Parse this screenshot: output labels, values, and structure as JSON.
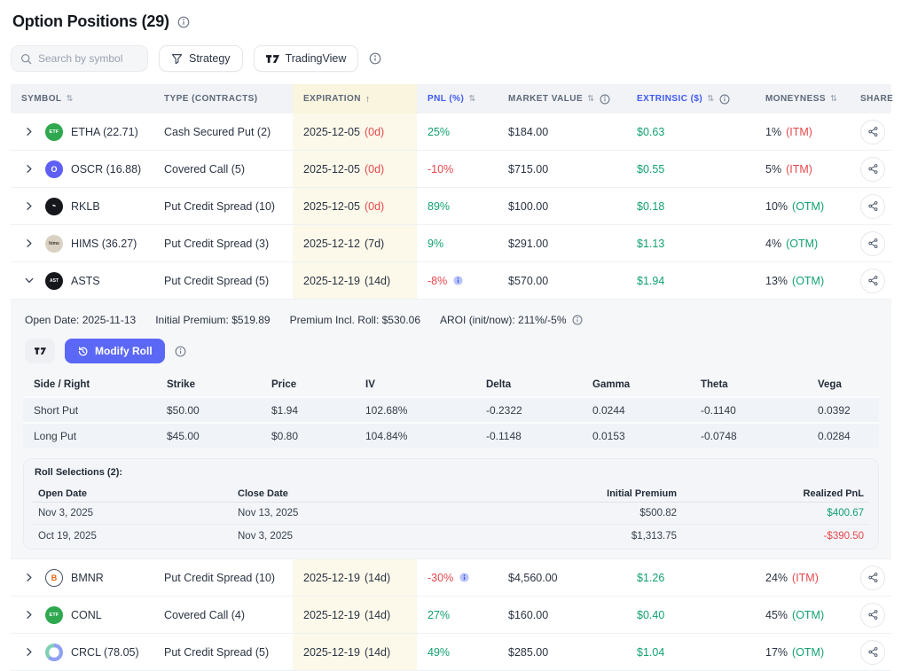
{
  "page": {
    "title": "Option Positions (29)"
  },
  "toolbar": {
    "search_placeholder": "Search by symbol",
    "strategy_label": "Strategy",
    "tradingview_label": "TradingView"
  },
  "icons": {
    "sort_glyph": "⇅",
    "sort_asc_glyph": "↑"
  },
  "colors": {
    "positive_green": "#12a171",
    "negative_red": "#e5484d",
    "accent_blue": "#3e59f3",
    "button_indigo": "#5b68f6",
    "expiration_highlight": "#fcf9ea"
  },
  "table": {
    "headers": {
      "symbol": "SYMBOL",
      "type": "TYPE (CONTRACTS)",
      "expiration": "EXPIRATION",
      "pnl": "PNL (%)",
      "market_value": "MARKET VALUE",
      "extrinsic": "EXTRINSIC ($)",
      "moneyness": "MONEYNESS",
      "share": "SHARE"
    },
    "rows": [
      {
        "ticker": "etha",
        "symbol": "ETHA (22.71)",
        "icon": {
          "kind": "etf",
          "text": "ETF",
          "bg": "#2fa84f"
        },
        "type": "Cash Secured Put (2)",
        "expiration": "2025-12-05",
        "dte": "(0d)",
        "dte_urgent": true,
        "pnl": "25%",
        "pnl_negative": false,
        "pnl_info": false,
        "market_value": "$184.00",
        "extrinsic": "$0.63",
        "moneyness_pct": "1%",
        "moneyness_tag": "(ITM)",
        "itm": true,
        "expanded": false
      },
      {
        "ticker": "oscr",
        "symbol": "OSCR (16.88)",
        "icon": {
          "kind": "letter",
          "text": "O",
          "bg": "#5f5ff5",
          "fg": "#ffffff",
          "fs": 9
        },
        "type": "Covered Call (5)",
        "expiration": "2025-12-05",
        "dte": "(0d)",
        "dte_urgent": true,
        "pnl": "-10%",
        "pnl_negative": true,
        "pnl_info": false,
        "market_value": "$715.00",
        "extrinsic": "$0.55",
        "moneyness_pct": "5%",
        "moneyness_tag": "(ITM)",
        "itm": true,
        "expanded": false
      },
      {
        "ticker": "rklb",
        "symbol": "RKLB",
        "icon": {
          "kind": "letter",
          "text": "⌁",
          "bg": "#15171c",
          "fg": "#ffffff",
          "fs": 7
        },
        "type": "Put Credit Spread (10)",
        "expiration": "2025-12-05",
        "dte": "(0d)",
        "dte_urgent": true,
        "pnl": "89%",
        "pnl_negative": false,
        "pnl_info": false,
        "market_value": "$100.00",
        "extrinsic": "$0.18",
        "moneyness_pct": "10%",
        "moneyness_tag": "(OTM)",
        "itm": false,
        "expanded": false
      },
      {
        "ticker": "hims",
        "symbol": "HIMS (36.27)",
        "icon": {
          "kind": "letter",
          "text": "hims",
          "bg": "#d9d2c3",
          "fg": "#3a352c",
          "fs": 5
        },
        "type": "Put Credit Spread (3)",
        "expiration": "2025-12-12",
        "dte": "(7d)",
        "dte_urgent": false,
        "pnl": "9%",
        "pnl_negative": false,
        "pnl_info": false,
        "market_value": "$291.00",
        "extrinsic": "$1.13",
        "moneyness_pct": "4%",
        "moneyness_tag": "(OTM)",
        "itm": false,
        "expanded": false
      },
      {
        "ticker": "asts",
        "symbol": "ASTS",
        "icon": {
          "kind": "letter",
          "text": "AST",
          "bg": "#15171c",
          "fg": "#ffffff",
          "fs": 5
        },
        "type": "Put Credit Spread (5)",
        "expiration": "2025-12-19",
        "dte": "(14d)",
        "dte_urgent": false,
        "pnl": "-8%",
        "pnl_negative": true,
        "pnl_info": true,
        "market_value": "$570.00",
        "extrinsic": "$1.94",
        "moneyness_pct": "13%",
        "moneyness_tag": "(OTM)",
        "itm": false,
        "expanded": true
      },
      {
        "ticker": "bmnr",
        "symbol": "BMNR",
        "icon": {
          "kind": "ring",
          "text": "B"
        },
        "type": "Put Credit Spread (10)",
        "expiration": "2025-12-19",
        "dte": "(14d)",
        "dte_urgent": false,
        "pnl": "-30%",
        "pnl_negative": true,
        "pnl_info": true,
        "market_value": "$4,560.00",
        "extrinsic": "$1.26",
        "moneyness_pct": "24%",
        "moneyness_tag": "(ITM)",
        "itm": true,
        "expanded": false
      },
      {
        "ticker": "conl",
        "symbol": "CONL",
        "icon": {
          "kind": "etf",
          "text": "ETF",
          "bg": "#2fa84f"
        },
        "type": "Covered Call (4)",
        "expiration": "2025-12-19",
        "dte": "(14d)",
        "dte_urgent": false,
        "pnl": "27%",
        "pnl_negative": false,
        "pnl_info": false,
        "market_value": "$160.00",
        "extrinsic": "$0.40",
        "moneyness_pct": "45%",
        "moneyness_tag": "(OTM)",
        "itm": false,
        "expanded": false
      },
      {
        "ticker": "crcl",
        "symbol": "CRCL (78.05)",
        "icon": {
          "kind": "swirl",
          "text": ""
        },
        "type": "Put Credit Spread (5)",
        "expiration": "2025-12-19",
        "dte": "(14d)",
        "dte_urgent": false,
        "pnl": "49%",
        "pnl_negative": false,
        "pnl_info": false,
        "market_value": "$285.00",
        "extrinsic": "$1.04",
        "moneyness_pct": "17%",
        "moneyness_tag": "(OTM)",
        "itm": false,
        "expanded": false
      }
    ]
  },
  "expanded": {
    "summary": {
      "open_date": "Open Date: 2025-11-13",
      "initial_premium": "Initial Premium: $519.89",
      "premium_incl_roll": "Premium Incl. Roll: $530.06",
      "aroi": "AROI (init/now): 211%/-5%"
    },
    "modify_roll_label": "Modify Roll",
    "legs": {
      "headers": [
        "Side / Right",
        "Strike",
        "Price",
        "IV",
        "Delta",
        "Gamma",
        "Theta",
        "Vega"
      ],
      "rows": [
        [
          "Short Put",
          "$50.00",
          "$1.94",
          "102.68%",
          "-0.2322",
          "0.0244",
          "-0.1140",
          "0.0392"
        ],
        [
          "Long Put",
          "$45.00",
          "$0.80",
          "104.84%",
          "-0.1148",
          "0.0153",
          "-0.0748",
          "0.0284"
        ]
      ]
    },
    "roll_selections": {
      "title": "Roll Selections (2):",
      "headers": [
        "Open Date",
        "Close Date",
        "Initial Premium",
        "Realized PnL"
      ],
      "rows": [
        {
          "open": "Nov 3, 2025",
          "close": "Nov 13, 2025",
          "initial_premium": "$500.82",
          "realized_pnl": "$400.67",
          "pnl_negative": false
        },
        {
          "open": "Oct 19, 2025",
          "close": "Nov 3, 2025",
          "initial_premium": "$1,313.75",
          "realized_pnl": "-$390.50",
          "pnl_negative": true
        }
      ]
    }
  }
}
